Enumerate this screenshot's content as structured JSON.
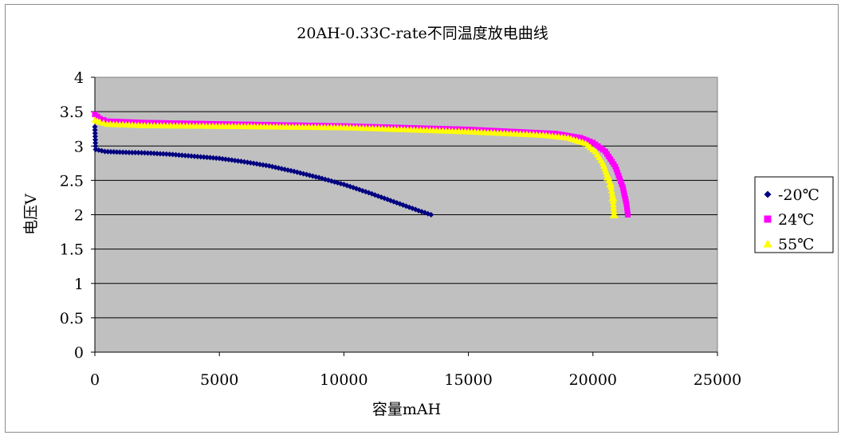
{
  "chart_data": {
    "type": "scatter",
    "title": "20AH-0.33C-rate不同温度放电曲线",
    "xlabel": "容量mAH",
    "ylabel": "电压V",
    "xlim": [
      0,
      25000
    ],
    "ylim": [
      0,
      4
    ],
    "x_ticks": [
      "0",
      "5000",
      "10000",
      "15000",
      "20000",
      "25000"
    ],
    "y_ticks": [
      "0",
      "0.5",
      "1",
      "1.5",
      "2",
      "2.5",
      "3",
      "3.5",
      "4"
    ],
    "grid": "horizontal",
    "legend_position": "right",
    "plot_background": "#c0c0c0",
    "series": [
      {
        "name": "-20℃",
        "marker": "diamond",
        "color": "#000080",
        "points": [
          [
            0,
            3.28
          ],
          [
            30,
            2.95
          ],
          [
            400,
            2.92
          ],
          [
            1000,
            2.91
          ],
          [
            2000,
            2.9
          ],
          [
            3000,
            2.88
          ],
          [
            4000,
            2.85
          ],
          [
            5000,
            2.82
          ],
          [
            6000,
            2.77
          ],
          [
            7000,
            2.71
          ],
          [
            8000,
            2.63
          ],
          [
            9000,
            2.54
          ],
          [
            10000,
            2.44
          ],
          [
            11000,
            2.32
          ],
          [
            12000,
            2.19
          ],
          [
            13000,
            2.06
          ],
          [
            13500,
            2.0
          ]
        ]
      },
      {
        "name": "24℃",
        "marker": "square",
        "color": "#ff00ff",
        "points": [
          [
            0,
            3.46
          ],
          [
            200,
            3.4
          ],
          [
            500,
            3.36
          ],
          [
            2000,
            3.34
          ],
          [
            5000,
            3.32
          ],
          [
            10000,
            3.29
          ],
          [
            15000,
            3.24
          ],
          [
            18500,
            3.18
          ],
          [
            19500,
            3.12
          ],
          [
            20000,
            3.05
          ],
          [
            20500,
            2.92
          ],
          [
            20900,
            2.7
          ],
          [
            21200,
            2.4
          ],
          [
            21350,
            2.15
          ],
          [
            21400,
            2.0
          ]
        ]
      },
      {
        "name": "55℃",
        "marker": "triangle",
        "color": "#ffff00",
        "points": [
          [
            0,
            3.38
          ],
          [
            200,
            3.35
          ],
          [
            500,
            3.32
          ],
          [
            2000,
            3.3
          ],
          [
            5000,
            3.29
          ],
          [
            10000,
            3.27
          ],
          [
            15000,
            3.21
          ],
          [
            18000,
            3.16
          ],
          [
            19000,
            3.12
          ],
          [
            19700,
            3.04
          ],
          [
            20100,
            2.92
          ],
          [
            20400,
            2.75
          ],
          [
            20600,
            2.55
          ],
          [
            20700,
            2.45
          ],
          [
            20800,
            2.25
          ],
          [
            20850,
            2.0
          ]
        ]
      }
    ]
  }
}
